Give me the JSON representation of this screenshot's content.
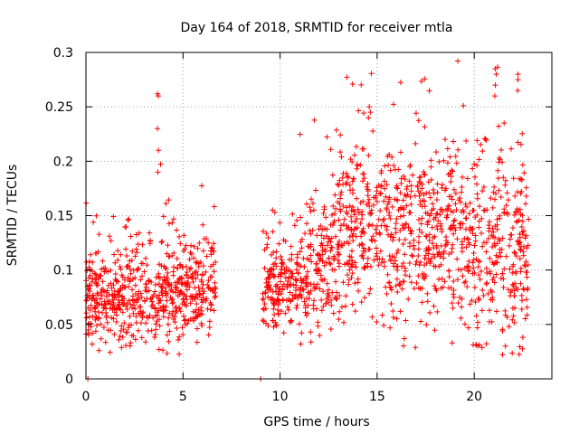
{
  "chart_data": {
    "type": "scatter",
    "title": "Day 164 of 2018, SRMTID for receiver mtla",
    "xlabel": "GPS time / hours",
    "ylabel": "SRMTID / TECUs",
    "xlim": [
      0,
      24
    ],
    "ylim": [
      0,
      0.3
    ],
    "xticks": [
      "0",
      "5",
      "10",
      "15",
      "20"
    ],
    "yticks": [
      "0",
      "0.05",
      "0.1",
      "0.15",
      "0.2",
      "0.25",
      "0.3"
    ],
    "grid": true,
    "marker": "+",
    "marker_color": "#ff0000",
    "series": [
      {
        "name": "SRMTID",
        "segments": [
          {
            "x_start": 0.0,
            "x_end": 6.7,
            "mean_start": 0.07,
            "mean_end": 0.08,
            "spread": 0.022
          },
          {
            "x_start": 9.1,
            "x_end": 11.0,
            "mean_start": 0.08,
            "mean_end": 0.085,
            "spread": 0.02
          },
          {
            "x_start": 11.0,
            "x_end": 13.0,
            "mean_start": 0.085,
            "mean_end": 0.12,
            "spread": 0.03
          },
          {
            "x_start": 13.0,
            "x_end": 20.0,
            "mean_start": 0.14,
            "mean_end": 0.13,
            "spread": 0.04
          },
          {
            "x_start": 20.0,
            "x_end": 22.8,
            "mean_start": 0.12,
            "mean_end": 0.12,
            "spread": 0.045
          }
        ],
        "peaks": [
          {
            "x": 3.7,
            "values": [
              0.26,
              0.262,
              0.23,
              0.21,
              0.19
            ]
          },
          {
            "x": 14.6,
            "values": [
              0.25,
              0.245,
              0.24
            ]
          },
          {
            "x": 21.1,
            "values": [
              0.285,
              0.28,
              0.27,
              0.26
            ]
          },
          {
            "x": 22.2,
            "values": [
              0.28,
              0.275,
              0.265
            ]
          }
        ],
        "zero_points": [
          {
            "x": 0.1,
            "y": 0.0
          },
          {
            "x": 9.0,
            "y": 0.0
          }
        ]
      }
    ]
  }
}
